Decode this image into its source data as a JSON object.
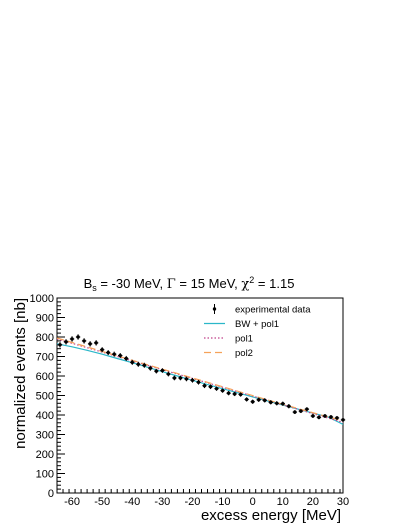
{
  "chart_data": {
    "type": "line",
    "title_parts": {
      "b_main": "B",
      "b_sub": "s",
      "b_rest": " = -30 MeV, ",
      "gamma_symbol": "Γ",
      "gamma_rest": " = 15 MeV, ",
      "chi_symbol": "χ",
      "chi_sup": "2",
      "chi_rest": " = 1.15"
    },
    "xlabel": "excess energy [MeV]",
    "ylabel": "normalized events [nb]",
    "xlim": [
      -65,
      30
    ],
    "ylim": [
      0,
      1000
    ],
    "x_ticks": [
      -60,
      -50,
      -40,
      -30,
      -20,
      -10,
      0,
      10,
      20,
      30
    ],
    "y_ticks": [
      0,
      100,
      200,
      300,
      400,
      500,
      600,
      700,
      800,
      900,
      1000
    ],
    "grid": false,
    "legend_position": "top-right",
    "legend": [
      {
        "label": "experimental data",
        "style": "marker"
      },
      {
        "label": "BW + pol1",
        "style": "solid",
        "color": "#2bb7c9"
      },
      {
        "label": "pol1",
        "style": "dotted",
        "color": "#c0408a"
      },
      {
        "label": "pol2",
        "style": "dashed",
        "color": "#f5a25a"
      }
    ],
    "series": [
      {
        "name": "experimental data",
        "kind": "points",
        "color": "#000000",
        "x": [
          -64,
          -62,
          -60,
          -58,
          -56,
          -54,
          -52,
          -50,
          -48,
          -46,
          -44,
          -42,
          -40,
          -38,
          -36,
          -34,
          -32,
          -30,
          -28,
          -26,
          -24,
          -22,
          -20,
          -18,
          -16,
          -14,
          -12,
          -10,
          -8,
          -6,
          -4,
          -2,
          0,
          2,
          4,
          6,
          8,
          10,
          12,
          14,
          16,
          18,
          20,
          22,
          24,
          26,
          28,
          30
        ],
        "y": [
          760,
          775,
          790,
          800,
          780,
          765,
          770,
          735,
          720,
          712,
          705,
          690,
          670,
          660,
          655,
          640,
          625,
          628,
          610,
          590,
          590,
          585,
          578,
          568,
          550,
          545,
          535,
          525,
          512,
          508,
          505,
          480,
          468,
          478,
          475,
          465,
          460,
          458,
          445,
          415,
          420,
          430,
          395,
          388,
          395,
          390,
          385,
          375
        ],
        "err": [
          14,
          14,
          14,
          14,
          14,
          14,
          14,
          13,
          13,
          13,
          13,
          13,
          13,
          13,
          13,
          13,
          12,
          12,
          12,
          12,
          12,
          12,
          12,
          12,
          12,
          12,
          11,
          11,
          11,
          11,
          11,
          11,
          11,
          11,
          11,
          11,
          11,
          11,
          11,
          10,
          10,
          10,
          10,
          10,
          10,
          10,
          10,
          10
        ]
      },
      {
        "name": "BW + pol1",
        "kind": "line",
        "style": "solid",
        "color": "#2bb7c9",
        "x": [
          -65,
          -60,
          -55,
          -50,
          -45,
          -40,
          -35,
          -30,
          -25,
          -20,
          -15,
          -10,
          -5,
          0,
          5,
          10,
          15,
          20,
          25,
          30
        ],
        "y": [
          765,
          750,
          732,
          712,
          690,
          668,
          645,
          622,
          600,
          578,
          556,
          535,
          514,
          493,
          472,
          451,
          430,
          410,
          390,
          352
        ]
      },
      {
        "name": "pol1",
        "kind": "line",
        "style": "dotted",
        "color": "#c0408a",
        "x": [
          -65,
          30
        ],
        "y": [
          790,
          362
        ]
      },
      {
        "name": "pol2",
        "kind": "line",
        "style": "dashed",
        "color": "#f5a25a",
        "x": [
          -65,
          -50,
          -35,
          -20,
          -5,
          10,
          20,
          30
        ],
        "y": [
          795,
          726,
          658,
          590,
          522,
          455,
          412,
          370
        ]
      }
    ]
  }
}
